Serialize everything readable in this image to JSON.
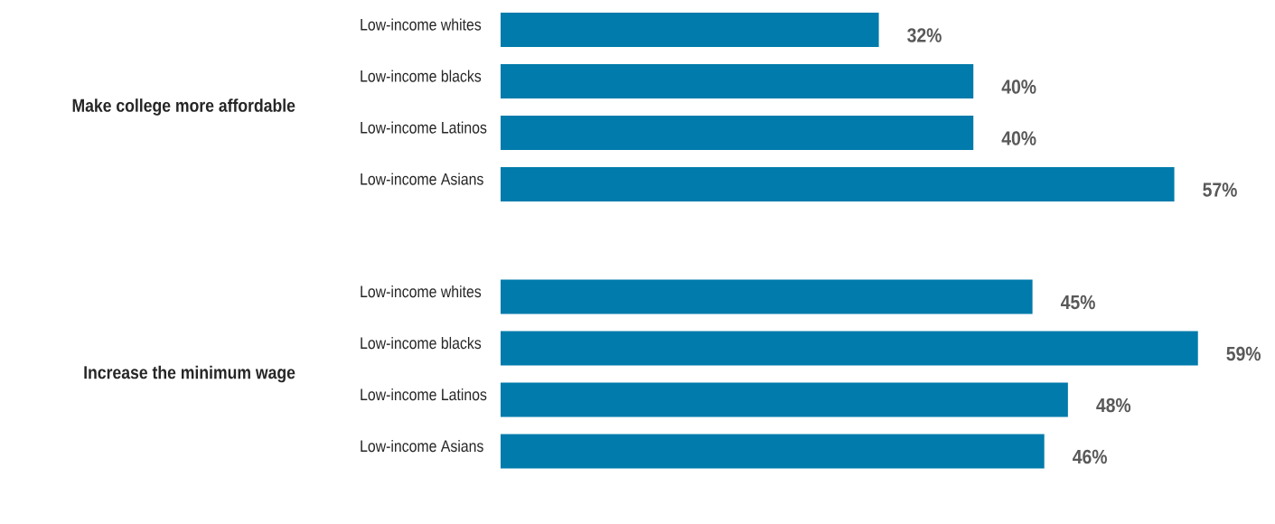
{
  "chart_data": [
    {
      "type": "bar",
      "orientation": "horizontal",
      "title": "Make college more affordable",
      "categories": [
        "Low-income whites",
        "Low-income blacks",
        "Low-income Latinos",
        "Low-income Asians"
      ],
      "values": [
        32,
        40,
        40,
        57
      ],
      "value_labels": [
        "32%",
        "40%",
        "40%",
        "57%"
      ],
      "color": "#007bab",
      "tick_labels": "y"
    },
    {
      "type": "bar",
      "orientation": "horizontal",
      "title": "Increase the minimum wage",
      "categories": [
        "Low-income whites",
        "Low-income blacks",
        "Low-income Latinos",
        "Low-income Asians"
      ],
      "values": [
        45,
        59,
        48,
        46
      ],
      "value_labels": [
        "45%",
        "59%",
        "48%",
        "46%"
      ],
      "color": "#007bab",
      "tick_labels": "y"
    }
  ]
}
